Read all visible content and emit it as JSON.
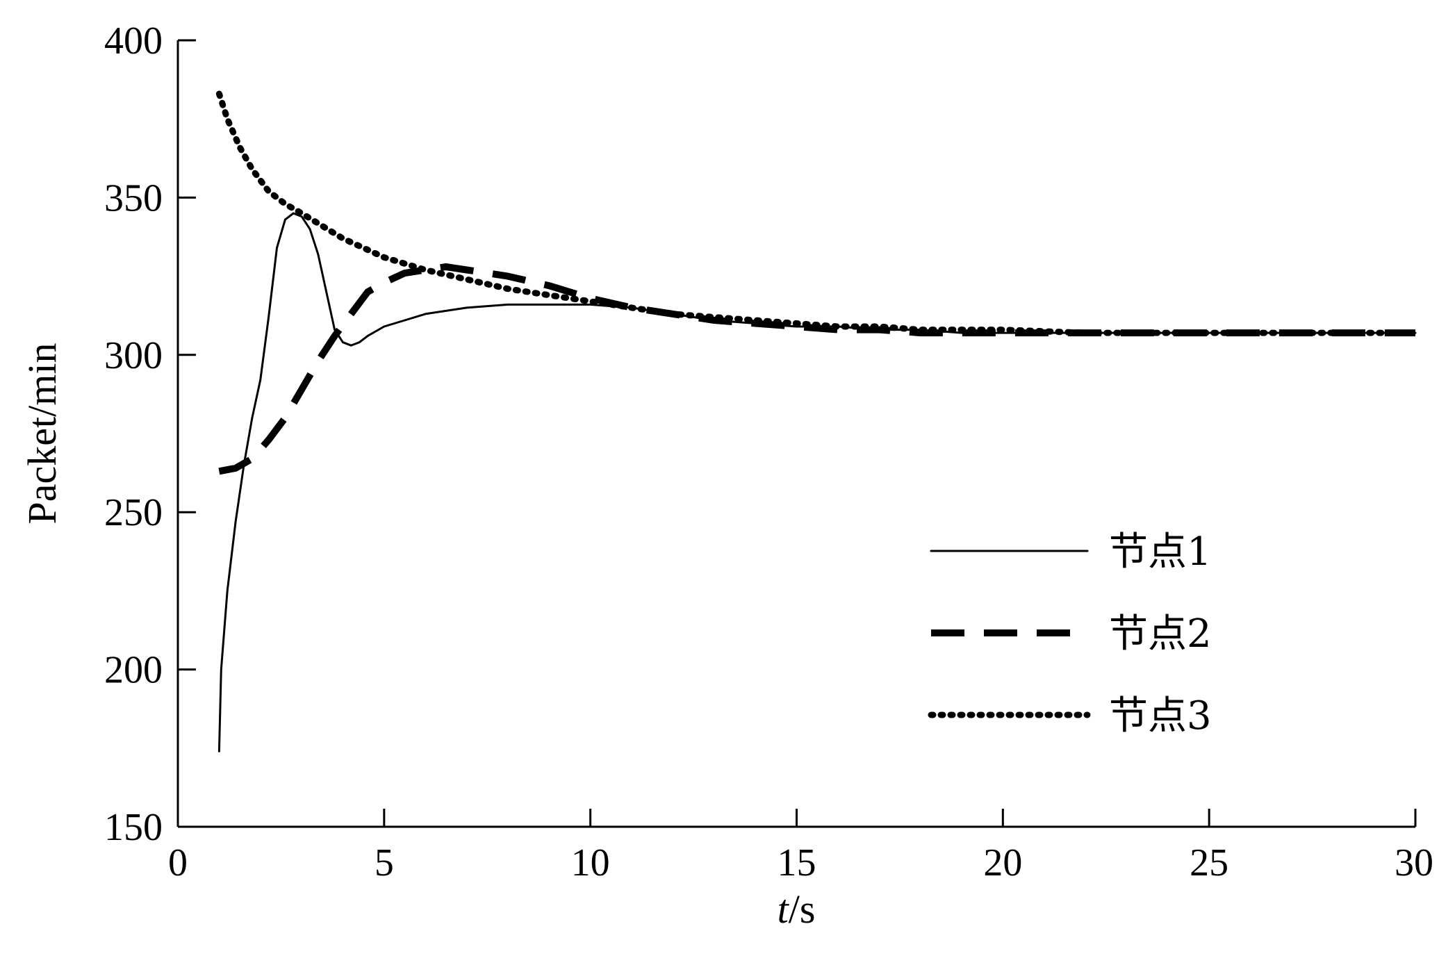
{
  "chart_data": {
    "type": "line",
    "title": "",
    "xlabel_italic": "t",
    "xlabel_unit": "/s",
    "ylabel": "Packet/min",
    "xlim": [
      0,
      30
    ],
    "ylim": [
      150,
      400
    ],
    "xticks": [
      0,
      5,
      10,
      15,
      20,
      25,
      30
    ],
    "yticks": [
      150,
      200,
      250,
      300,
      350,
      400
    ],
    "grid": false,
    "legend_position": "center-right",
    "series": [
      {
        "name": "节点1",
        "style": "solid",
        "x": [
          1.0,
          1.05,
          1.2,
          1.4,
          1.6,
          1.8,
          2.0,
          2.2,
          2.4,
          2.6,
          2.8,
          3.0,
          3.2,
          3.4,
          3.6,
          3.8,
          4.0,
          4.2,
          4.4,
          4.6,
          5.0,
          5.5,
          6.0,
          6.5,
          7.0,
          8.0,
          9.0,
          10.0,
          11.0,
          12.0,
          13.0,
          14.0,
          15.0,
          16.0,
          17.0,
          18.0,
          19.0,
          20.0,
          22.0,
          24.0,
          26.0,
          28.0,
          30.0
        ],
        "y": [
          174,
          200,
          225,
          247,
          265,
          280,
          292,
          312,
          334,
          343,
          345,
          344,
          340,
          332,
          320,
          308,
          304,
          303,
          304,
          306,
          309,
          311,
          313,
          314,
          315,
          316,
          316,
          316,
          315,
          313,
          311,
          310,
          309,
          309,
          308,
          308,
          307,
          307,
          307,
          307,
          307,
          307,
          307
        ]
      },
      {
        "name": "节点2",
        "style": "dashed",
        "x": [
          1.0,
          1.4,
          1.8,
          2.2,
          2.6,
          3.0,
          3.4,
          3.8,
          4.2,
          4.6,
          5.0,
          5.5,
          6.0,
          6.5,
          7.0,
          8.0,
          9.0,
          10.0,
          11.0,
          12.0,
          13.0,
          14.0,
          15.0,
          16.0,
          17.0,
          18.0,
          19.0,
          20.0,
          22.0,
          24.0,
          26.0,
          28.0,
          30.0
        ],
        "y": [
          263,
          264,
          267,
          273,
          280,
          289,
          298,
          306,
          313,
          320,
          323,
          326,
          327,
          328,
          327,
          325,
          322,
          318,
          315,
          313,
          311,
          310,
          309,
          308,
          308,
          307,
          307,
          307,
          307,
          307,
          307,
          307,
          307
        ]
      },
      {
        "name": "节点3",
        "style": "dotted",
        "x": [
          1.0,
          1.2,
          1.5,
          1.8,
          2.2,
          2.6,
          3.0,
          3.5,
          4.0,
          4.5,
          5.0,
          6.0,
          7.0,
          8.0,
          9.0,
          10.0,
          11.0,
          12.0,
          13.0,
          14.0,
          15.0,
          16.0,
          17.0,
          18.0,
          19.0,
          20.0,
          22.0,
          24.0,
          26.0,
          28.0,
          30.0
        ],
        "y": [
          383,
          375,
          366,
          359,
          352,
          348,
          345,
          341,
          337,
          334,
          331,
          327,
          324,
          321,
          319,
          317,
          315,
          313,
          312,
          311,
          310,
          309,
          309,
          308,
          308,
          308,
          307,
          307,
          307,
          307,
          307
        ]
      }
    ]
  }
}
